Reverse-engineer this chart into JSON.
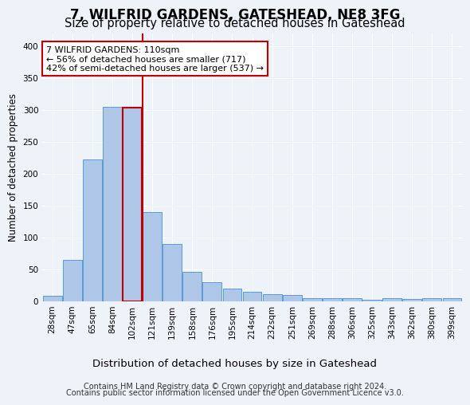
{
  "title": "7, WILFRID GARDENS, GATESHEAD, NE8 3FG",
  "subtitle": "Size of property relative to detached houses in Gateshead",
  "xlabel": "Distribution of detached houses by size in Gateshead",
  "ylabel": "Number of detached properties",
  "categories": [
    "28sqm",
    "47sqm",
    "65sqm",
    "84sqm",
    "102sqm",
    "121sqm",
    "139sqm",
    "158sqm",
    "176sqm",
    "195sqm",
    "214sqm",
    "232sqm",
    "251sqm",
    "269sqm",
    "288sqm",
    "306sqm",
    "325sqm",
    "343sqm",
    "362sqm",
    "380sqm",
    "399sqm"
  ],
  "values": [
    8,
    64,
    222,
    305,
    303,
    139,
    90,
    46,
    30,
    19,
    14,
    11,
    10,
    4,
    5,
    4,
    2,
    4,
    3,
    4,
    4
  ],
  "bar_color": "#aec6e8",
  "bar_edge_color": "#5b9bd5",
  "highlight_bar_index": 4,
  "highlight_bar_edge_color": "#c00000",
  "red_line_x": 4.5,
  "annotation_title": "7 WILFRID GARDENS: 110sqm",
  "annotation_line1": "← 56% of detached houses are smaller (717)",
  "annotation_line2": "42% of semi-detached houses are larger (537) →",
  "annotation_box_color": "#ffffff",
  "annotation_box_edge_color": "#c00000",
  "ylim": [
    0,
    420
  ],
  "yticks": [
    0,
    50,
    100,
    150,
    200,
    250,
    300,
    350,
    400
  ],
  "footer1": "Contains HM Land Registry data © Crown copyright and database right 2024.",
  "footer2": "Contains public sector information licensed under the Open Government Licence v3.0.",
  "background_color": "#eef2f9",
  "plot_background_color": "#eef2f9",
  "title_fontsize": 12,
  "subtitle_fontsize": 10.5,
  "xlabel_fontsize": 9.5,
  "ylabel_fontsize": 8.5,
  "tick_fontsize": 7.5,
  "annotation_fontsize": 8,
  "footer_fontsize": 7
}
